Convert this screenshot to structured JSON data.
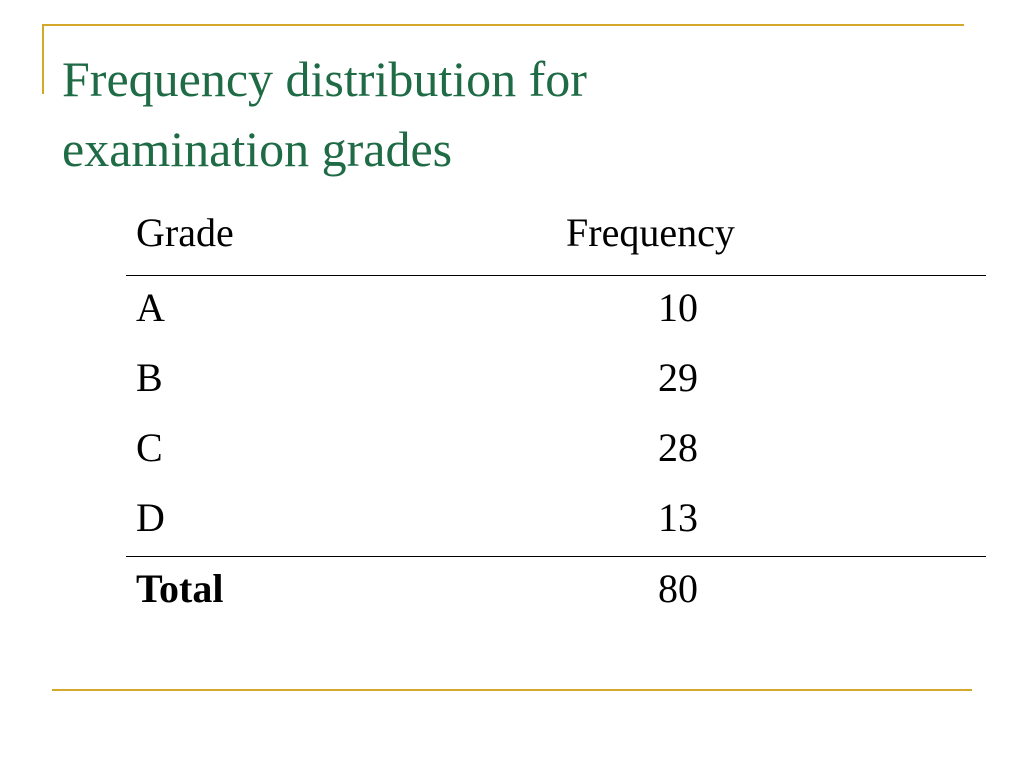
{
  "colors": {
    "title": "#1f6b45",
    "accent_rule": "#d4a82a",
    "text": "#000000"
  },
  "slide": {
    "title_line1": "Frequency distribution for",
    "title_line2": "examination grades"
  },
  "table": {
    "headers": {
      "grade": "Grade",
      "frequency": "Frequency"
    },
    "rows": [
      {
        "grade": "A",
        "frequency": "10"
      },
      {
        "grade": "B",
        "frequency": "29"
      },
      {
        "grade": "C",
        "frequency": "28"
      },
      {
        "grade": "D",
        "frequency": "13"
      }
    ],
    "total": {
      "label": "Total",
      "frequency": "80"
    }
  }
}
